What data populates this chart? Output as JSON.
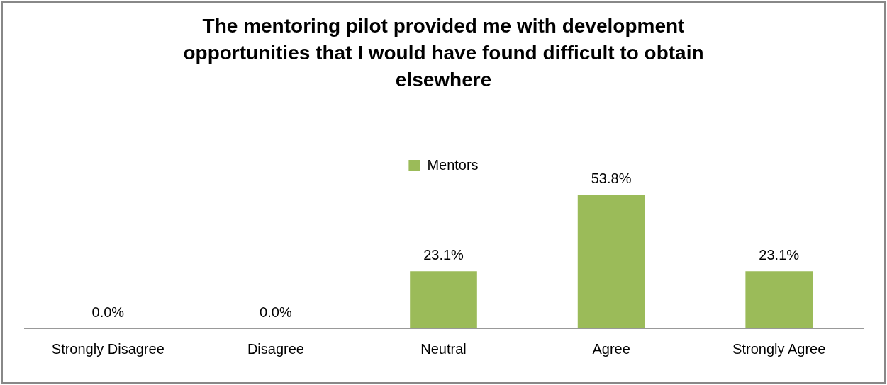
{
  "chart_data": {
    "type": "bar",
    "title": "The mentoring pilot provided me with development opportunities that I would have found difficult to obtain elsewhere",
    "categories": [
      "Strongly Disagree",
      "Disagree",
      "Neutral",
      "Agree",
      "Strongly Agree"
    ],
    "series": [
      {
        "name": "Mentors",
        "color": "#9bbb59",
        "values": [
          0,
          0,
          23.1,
          53.8,
          23.1
        ],
        "value_labels": [
          "0.0%",
          "0.0%",
          "23.1%",
          "53.8%",
          "23.1%"
        ]
      }
    ],
    "legend": "top",
    "grid": false
  }
}
